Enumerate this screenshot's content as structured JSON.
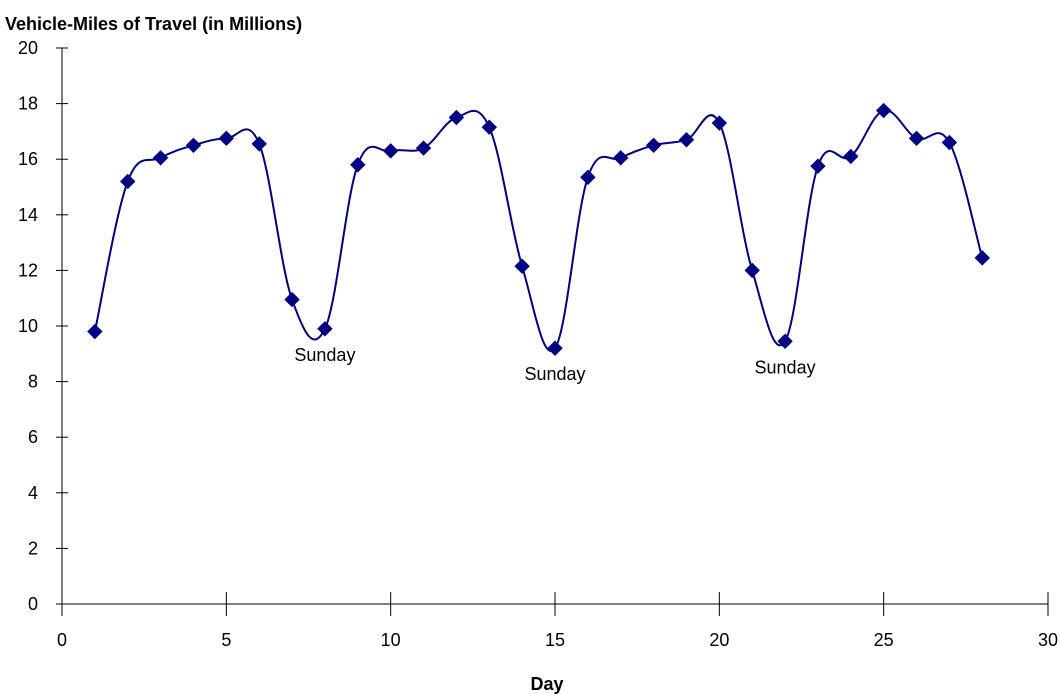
{
  "chart_data": {
    "type": "line",
    "title": "",
    "ylabel": "Vehicle-Miles of Travel (in Millions)",
    "xlabel": "Day",
    "xlim": [
      0,
      30
    ],
    "ylim": [
      0,
      20
    ],
    "x_ticks": [
      0,
      5,
      10,
      15,
      20,
      25,
      30
    ],
    "y_ticks": [
      0,
      2,
      4,
      6,
      8,
      10,
      12,
      14,
      16,
      18,
      20
    ],
    "grid": false,
    "legend": "none",
    "line_color": "#000080",
    "marker": "diamond",
    "smooth": true,
    "series": [
      {
        "x": [
          1,
          2,
          3,
          4,
          5,
          6,
          7,
          8,
          9,
          10,
          11,
          12,
          13,
          14,
          15,
          16,
          17,
          18,
          19,
          20,
          21,
          22,
          23,
          24,
          25,
          26,
          27,
          28
        ],
        "y": [
          9.8,
          15.2,
          16.05,
          16.5,
          16.75,
          16.55,
          10.95,
          9.9,
          15.8,
          16.3,
          16.4,
          17.5,
          17.15,
          12.15,
          9.2,
          15.35,
          16.05,
          16.5,
          16.7,
          17.3,
          12.0,
          9.45,
          15.75,
          16.1,
          17.75,
          16.75,
          16.6,
          12.45
        ]
      }
    ],
    "annotations": [
      {
        "text": "Sunday",
        "x": 8,
        "y": 9.9
      },
      {
        "text": "Sunday",
        "x": 15,
        "y": 9.2
      },
      {
        "text": "Sunday",
        "x": 22,
        "y": 9.45
      }
    ]
  }
}
